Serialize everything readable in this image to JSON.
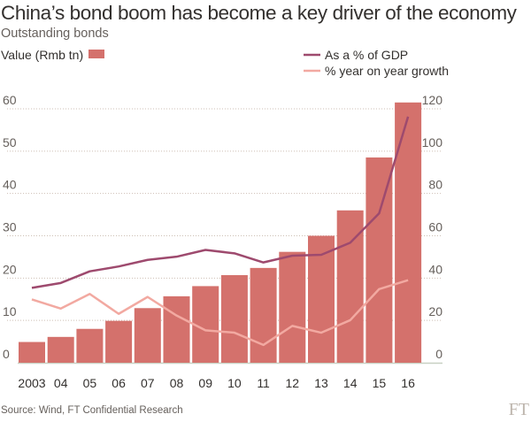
{
  "title": "China’s bond boom has become a key driver of the economy",
  "subtitle": "Outstanding bonds",
  "source": "Source: Wind, FT Confidential Research",
  "logo": "FT",
  "colors": {
    "bars": "#d4716c",
    "gdp_line": "#9e4a6e",
    "growth_line": "#f2a9a1",
    "grid": "#cdbfb4",
    "baseline": "#c8d0c2"
  },
  "chart_data": {
    "type": "bar+line",
    "categories": [
      "2003",
      "04",
      "05",
      "06",
      "07",
      "08",
      "09",
      "10",
      "11",
      "12",
      "13",
      "14",
      "15",
      "16"
    ],
    "series": [
      {
        "name": "Value (Rmb tn)",
        "type": "bar",
        "axis": "left",
        "values": [
          4.9,
          6.1,
          8.0,
          9.9,
          12.9,
          15.7,
          18.1,
          20.7,
          22.4,
          26.2,
          30.0,
          36.0,
          48.5,
          61.5
        ]
      },
      {
        "name": "As a % of GDP",
        "type": "line",
        "axis": "right",
        "values": [
          35.4,
          37.7,
          43.2,
          45.5,
          48.6,
          50.1,
          53.3,
          51.7,
          47.4,
          50.6,
          51.0,
          56.7,
          70.6,
          116.3
        ]
      },
      {
        "name": "% year on year growth",
        "type": "line",
        "axis": "right",
        "values": [
          29.9,
          25.6,
          32.5,
          23.1,
          31.1,
          22.3,
          15.3,
          14.2,
          8.4,
          17.4,
          14.2,
          20.1,
          34.8,
          39.0
        ]
      }
    ],
    "left_axis": {
      "ylim": [
        0,
        60
      ],
      "ticks": [
        "0",
        "10",
        "20",
        "30",
        "40",
        "50",
        "60"
      ]
    },
    "right_axis": {
      "ylim": [
        0,
        120
      ],
      "ticks": [
        "0",
        "20",
        "40",
        "60",
        "80",
        "100",
        "120"
      ]
    },
    "grid": true,
    "legend_placement": "top"
  }
}
